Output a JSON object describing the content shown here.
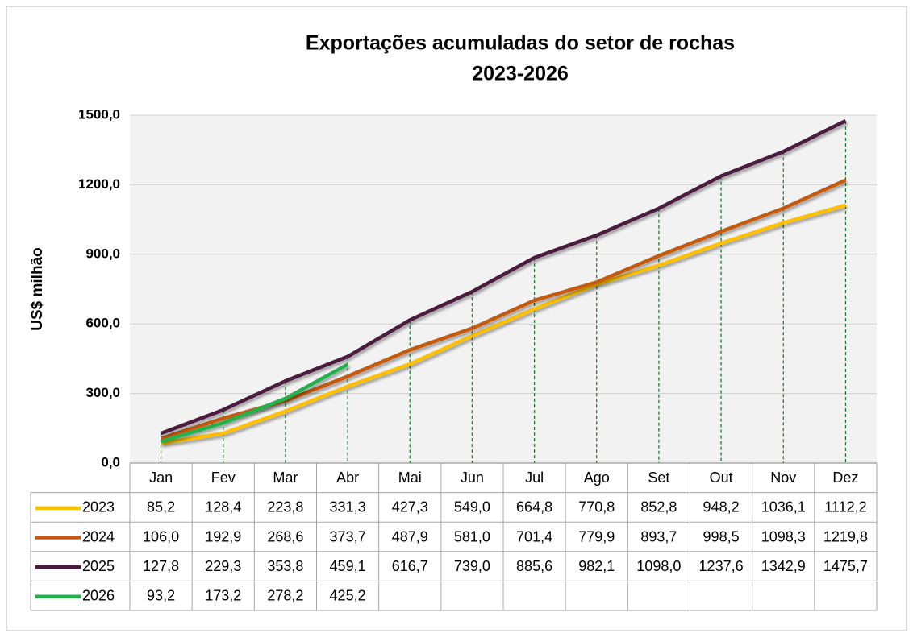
{
  "chart_data": {
    "type": "line",
    "title": [
      "Exportações acumuladas do setor de rochas",
      "2023-2026"
    ],
    "y_label": "US$ milhão",
    "categories": [
      "Jan",
      "Fev",
      "Mar",
      "Abr",
      "Mai",
      "Jun",
      "Jul",
      "Ago",
      "Set",
      "Out",
      "Nov",
      "Dez"
    ],
    "series": [
      {
        "name": "2023",
        "color": "#FFC000",
        "values": [
          85.2,
          128.4,
          223.8,
          331.3,
          427.3,
          549.0,
          664.8,
          770.8,
          852.8,
          948.2,
          1036.1,
          1112.2
        ],
        "value_labels": [
          "85,2",
          "128,4",
          "223,8",
          "331,3",
          "427,3",
          "549,0",
          "664,8",
          "770,8",
          "852,8",
          "948,2",
          "1036,1",
          "1112,2"
        ]
      },
      {
        "name": "2024",
        "color": "#C55A11",
        "values": [
          106.0,
          192.9,
          268.6,
          373.7,
          487.9,
          581.0,
          701.4,
          779.9,
          893.7,
          998.5,
          1098.3,
          1219.8
        ],
        "value_labels": [
          "106,0",
          "192,9",
          "268,6",
          "373,7",
          "487,9",
          "581,0",
          "701,4",
          "779,9",
          "893,7",
          "998,5",
          "1098,3",
          "1219,8"
        ]
      },
      {
        "name": "2025",
        "color": "#4B1A3F",
        "values": [
          127.8,
          229.3,
          353.8,
          459.1,
          616.7,
          739.0,
          885.6,
          982.1,
          1098.0,
          1237.6,
          1342.9,
          1475.7
        ],
        "value_labels": [
          "127,8",
          "229,3",
          "353,8",
          "459,1",
          "616,7",
          "739,0",
          "885,6",
          "982,1",
          "1098,0",
          "1237,6",
          "1342,9",
          "1475,7"
        ]
      },
      {
        "name": "2026",
        "color": "#22B14C",
        "values": [
          93.2,
          173.2,
          278.2,
          425.2,
          null,
          null,
          null,
          null,
          null,
          null,
          null,
          null
        ],
        "value_labels": [
          "93,2",
          "173,2",
          "278,2",
          "425,2",
          null,
          null,
          null,
          null,
          null,
          null,
          null,
          null
        ]
      }
    ],
    "ylim": [
      0,
      1500
    ],
    "yticks": [
      {
        "value": 0,
        "label": "0,0"
      },
      {
        "value": 300,
        "label": "300,0"
      },
      {
        "value": 600,
        "label": "600,0"
      },
      {
        "value": 900,
        "label": "900,0"
      },
      {
        "value": 1200,
        "label": "1200,0"
      },
      {
        "value": 1500,
        "label": "1500,0"
      }
    ],
    "grid": true,
    "drop_lines": true,
    "drop_line_color": "#1E7B2E",
    "data_table": true
  }
}
